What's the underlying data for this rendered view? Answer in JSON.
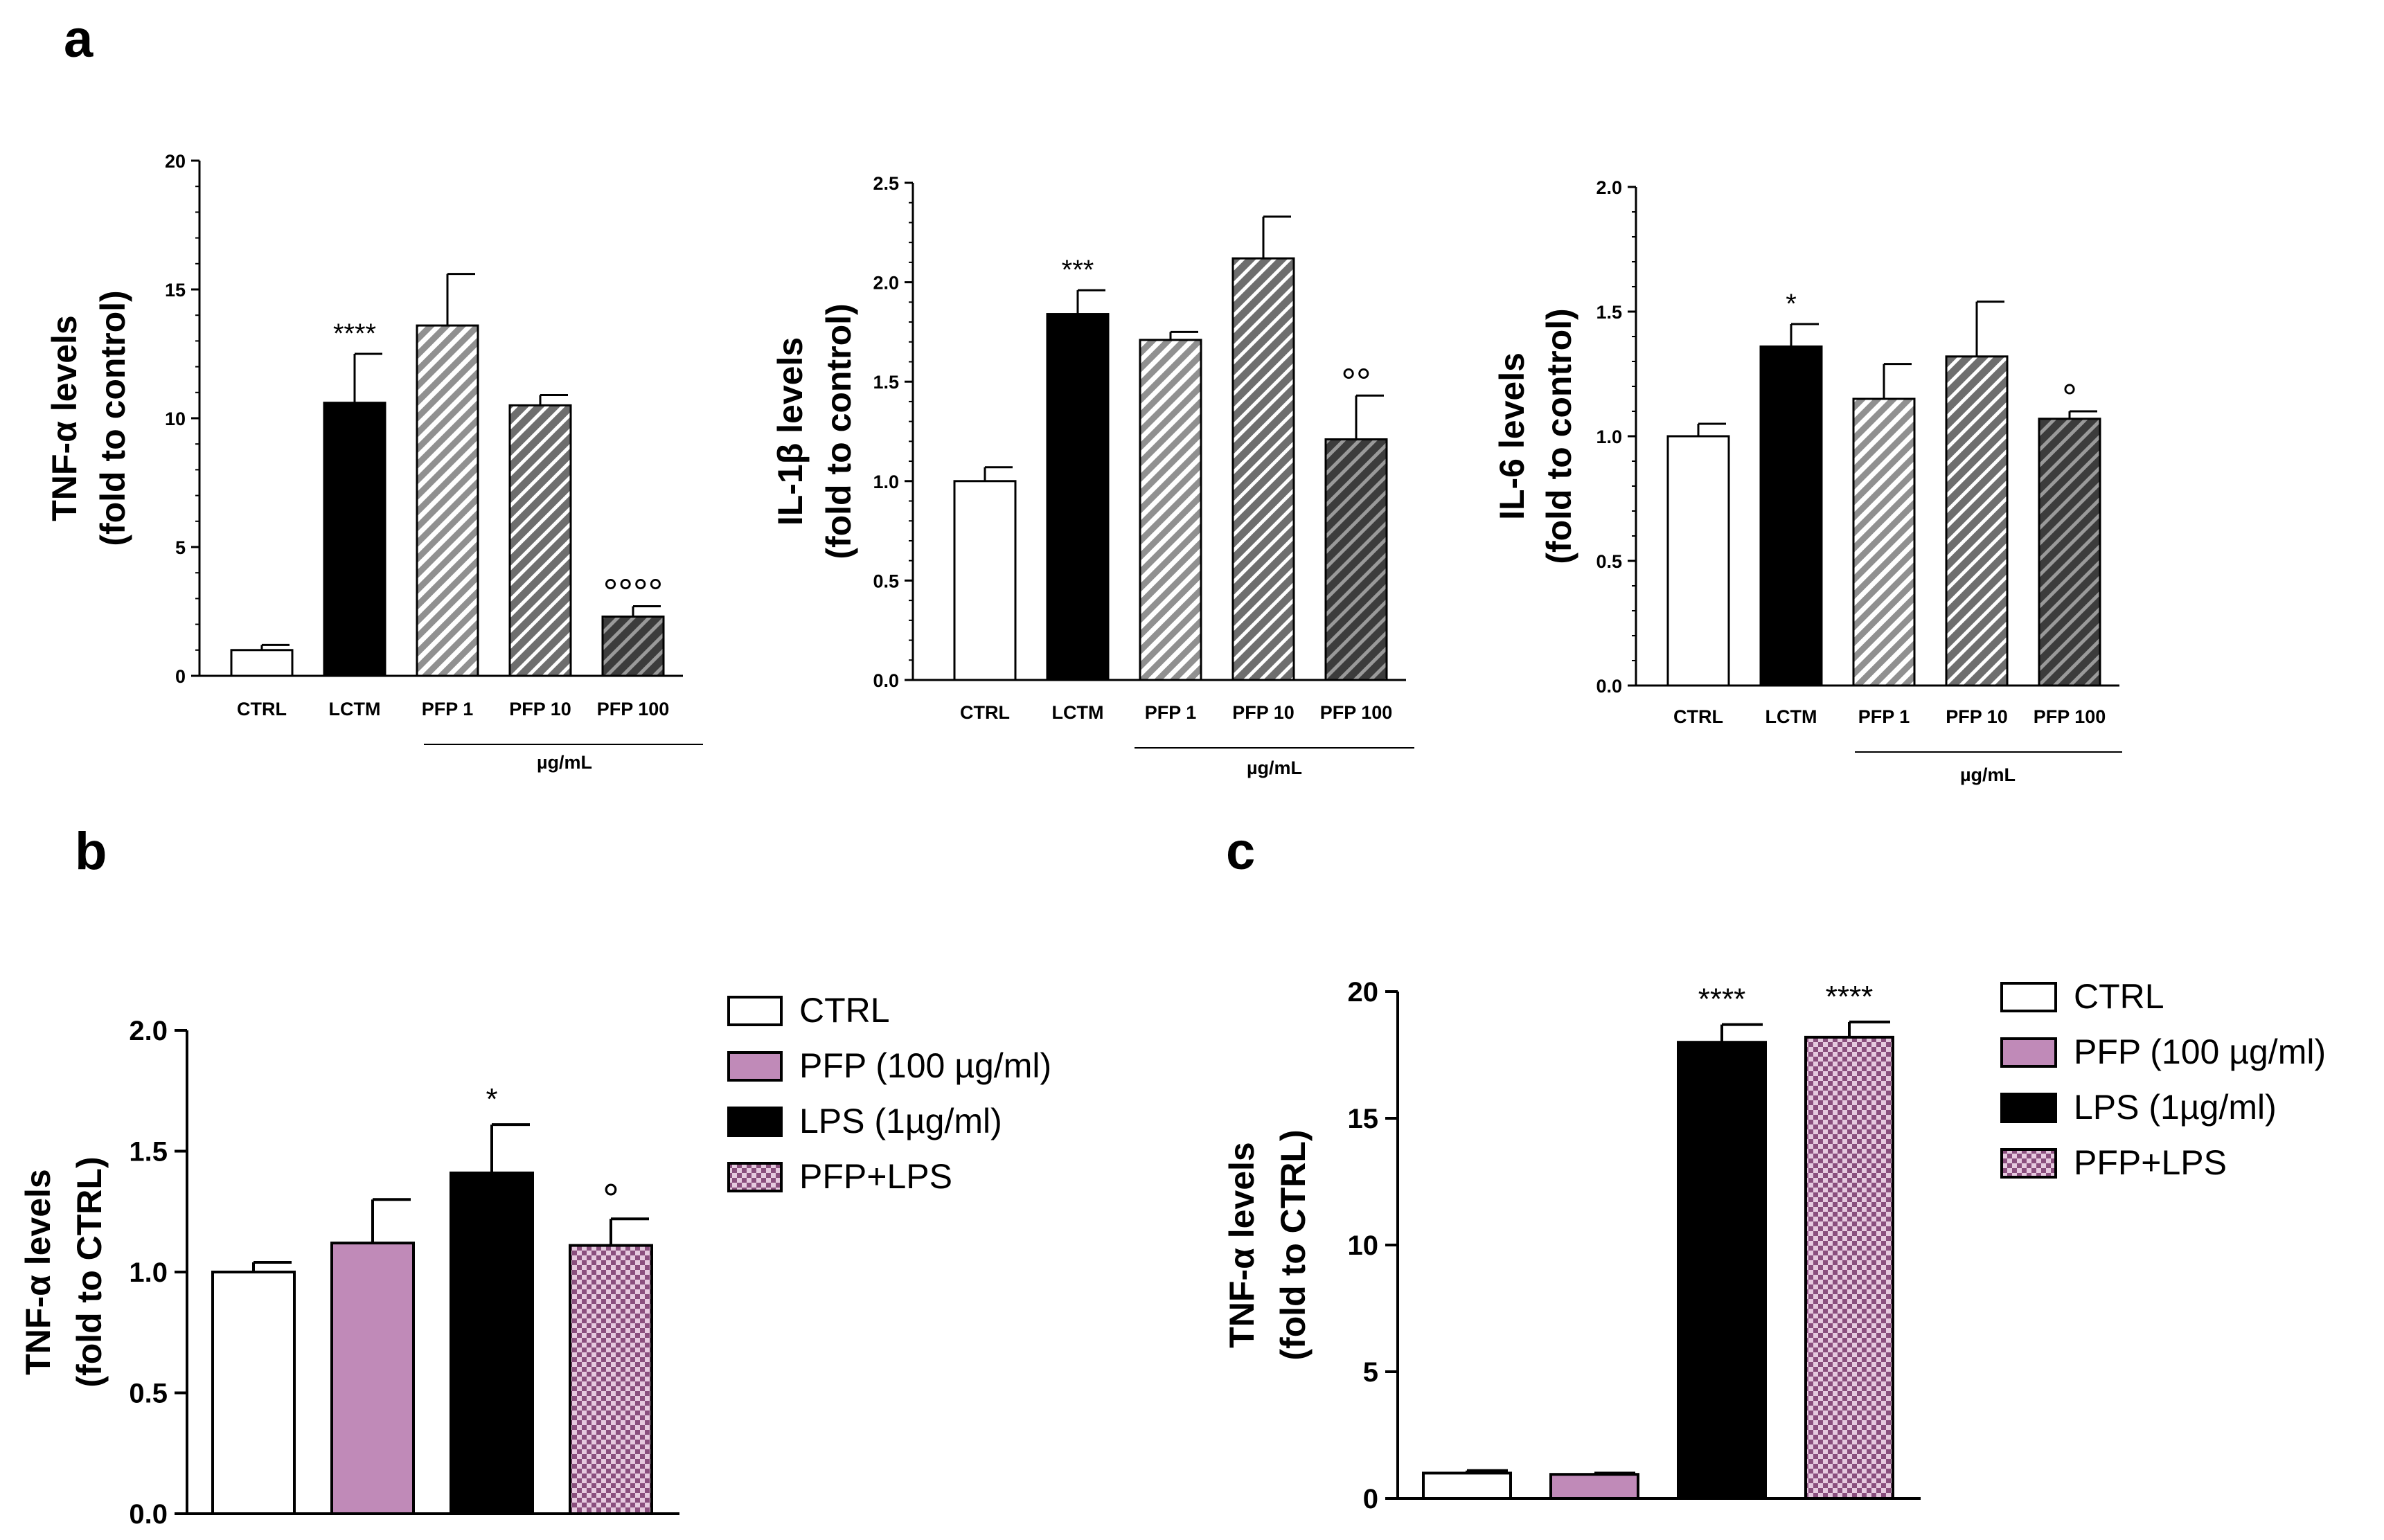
{
  "panels": {
    "a": "a",
    "b": "b",
    "c": "c"
  },
  "colors": {
    "ctrl": "#ffffff",
    "black": "#000000",
    "pfp_light": "#909090",
    "pfp_mid": "#6e6e6e",
    "pfp_dark": "#444444",
    "pfp_pink": "#c08ab8",
    "pink_check": "#b57aa9"
  },
  "chart_data": [
    {
      "type": "bar",
      "panel": "a",
      "ylabel": "TNF-α levels",
      "ylabel2": "(fold to control)",
      "categories": [
        "CTRL",
        "LCTM",
        "PFP 1",
        "PFP 10",
        "PFP 100"
      ],
      "values": [
        1.0,
        10.6,
        13.6,
        10.5,
        2.3
      ],
      "errors": [
        0.2,
        1.9,
        2.0,
        0.4,
        0.4
      ],
      "significance": [
        "",
        "****",
        "",
        "",
        "°°°°"
      ],
      "fills": [
        "white",
        "black",
        "hatch-light",
        "hatch-mid",
        "hatch-dark"
      ],
      "ylim": [
        0,
        20
      ],
      "yticks": [
        0,
        5,
        10,
        15,
        20
      ],
      "ytick_labels": [
        "0",
        "5",
        "10",
        "15",
        "20"
      ],
      "group_label": "µg/mL"
    },
    {
      "type": "bar",
      "panel": "a",
      "ylabel": "IL-1β levels",
      "ylabel2": "(fold to control)",
      "categories": [
        "CTRL",
        "LCTM",
        "PFP 1",
        "PFP 10",
        "PFP 100"
      ],
      "values": [
        1.0,
        1.84,
        1.71,
        2.12,
        1.21
      ],
      "errors": [
        0.07,
        0.12,
        0.04,
        0.21,
        0.22
      ],
      "significance": [
        "",
        "***",
        "",
        "",
        "°°"
      ],
      "fills": [
        "white",
        "black",
        "hatch-light",
        "hatch-mid",
        "hatch-dark"
      ],
      "ylim": [
        0,
        2.5
      ],
      "yticks": [
        0,
        0.5,
        1,
        1.5,
        2,
        2.5
      ],
      "ytick_labels": [
        "0.0",
        "0.5",
        "1.0",
        "1.5",
        "2.0",
        "2.5"
      ],
      "group_label": "µg/mL"
    },
    {
      "type": "bar",
      "panel": "a",
      "ylabel": "IL-6 levels",
      "ylabel2": "(fold to control)",
      "categories": [
        "CTRL",
        "LCTM",
        "PFP 1",
        "PFP 10",
        "PFP 100"
      ],
      "values": [
        1.0,
        1.36,
        1.15,
        1.32,
        1.07
      ],
      "errors": [
        0.05,
        0.09,
        0.14,
        0.22,
        0.03
      ],
      "significance": [
        "",
        "*",
        "",
        "",
        "°"
      ],
      "fills": [
        "white",
        "black",
        "hatch-light",
        "hatch-mid",
        "hatch-dark"
      ],
      "ylim": [
        0,
        2.0
      ],
      "yticks": [
        0,
        0.5,
        1,
        1.5,
        2
      ],
      "ytick_labels": [
        "0.0",
        "0.5",
        "1.0",
        "1.5",
        "2.0"
      ],
      "group_label": "µg/mL"
    },
    {
      "type": "bar",
      "panel": "b",
      "ylabel": "TNF-α levels",
      "ylabel2": "(fold to CTRL)",
      "categories": [
        "CTRL",
        "PFP (100 µg/ml)",
        "LPS (1µg/ml)",
        "PFP+LPS"
      ],
      "values": [
        1.0,
        1.12,
        1.41,
        1.11
      ],
      "errors": [
        0.04,
        0.18,
        0.2,
        0.11
      ],
      "significance": [
        "",
        "",
        "*",
        "°"
      ],
      "fills": [
        "white",
        "pink",
        "black",
        "pink-check"
      ],
      "ylim": [
        0,
        2.0
      ],
      "yticks": [
        0,
        0.5,
        1,
        1.5,
        2
      ],
      "ytick_labels": [
        "0.0",
        "0.5",
        "1.0",
        "1.5",
        "2.0"
      ],
      "legend": [
        "CTRL",
        "PFP (100 µg/ml)",
        "LPS (1µg/ml)",
        "PFP+LPS"
      ]
    },
    {
      "type": "bar",
      "panel": "c",
      "ylabel": "TNF-α levels",
      "ylabel2": "(fold to CTRL)",
      "categories": [
        "CTRL",
        "PFP (100 µg/ml)",
        "LPS (1µg/ml)",
        "PFP+LPS"
      ],
      "values": [
        1.0,
        0.95,
        18.0,
        18.2
      ],
      "errors": [
        0.1,
        0.05,
        0.7,
        0.6
      ],
      "significance": [
        "",
        "",
        "****",
        "****"
      ],
      "fills": [
        "white",
        "pink",
        "black",
        "pink-check"
      ],
      "ylim": [
        0,
        20
      ],
      "yticks": [
        0,
        5,
        10,
        15,
        20
      ],
      "ytick_labels": [
        "0",
        "5",
        "10",
        "15",
        "20"
      ],
      "legend": [
        "CTRL",
        "PFP (100 µg/ml)",
        "LPS (1µg/ml)",
        "PFP+LPS"
      ]
    }
  ]
}
